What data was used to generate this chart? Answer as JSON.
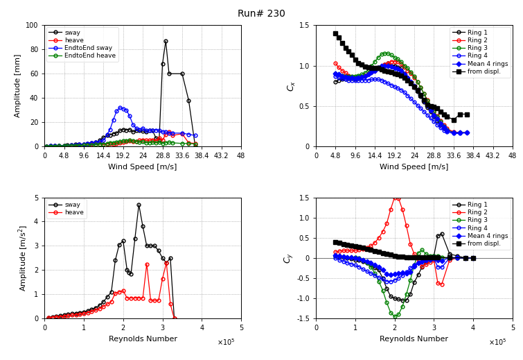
{
  "title": "Run# 230",
  "top_left": {
    "xlabel": "Wind Speed [m/s]",
    "ylabel": "Amplitude [mm]",
    "xlim": [
      0,
      48
    ],
    "ylim": [
      0,
      100
    ],
    "xticks": [
      0,
      4.8,
      9.6,
      14.4,
      19.2,
      24,
      28.8,
      33.6,
      38.4,
      43.2,
      48
    ],
    "yticks": [
      0,
      20,
      40,
      60,
      80,
      100
    ],
    "sway_x": [
      0.5,
      1.5,
      2.5,
      3.5,
      4.8,
      5.5,
      6.5,
      7.5,
      8.5,
      9.6,
      10.5,
      11.5,
      12.5,
      13.5,
      14.4,
      15.3,
      16.0,
      16.8,
      17.6,
      18.4,
      19.2,
      20.0,
      20.8,
      21.6,
      22.4,
      23.2,
      24.0,
      24.8,
      25.6,
      26.4,
      27.2,
      28.0,
      28.8,
      29.6,
      30.4,
      33.6,
      35.2,
      36.8
    ],
    "sway_y": [
      0.3,
      0.4,
      0.5,
      0.6,
      0.8,
      1.0,
      1.2,
      1.5,
      1.8,
      2.0,
      2.5,
      3.0,
      3.5,
      5.0,
      7.5,
      9.0,
      9.5,
      10.5,
      11.0,
      13.0,
      14.0,
      13.5,
      14.0,
      12.0,
      13.0,
      13.0,
      12.5,
      12.0,
      13.0,
      13.0,
      7.0,
      5.5,
      68.0,
      87.0,
      60.0,
      60.0,
      38.0,
      0.0
    ],
    "heave_x": [
      0.5,
      1.5,
      2.5,
      3.5,
      4.8,
      5.5,
      6.5,
      7.5,
      8.5,
      9.6,
      10.5,
      11.5,
      12.5,
      13.5,
      14.4,
      15.3,
      16.0,
      16.8,
      17.6,
      18.4,
      19.2,
      20.0,
      20.8,
      21.6,
      22.4,
      23.2,
      24.0,
      24.8,
      25.6,
      26.4,
      27.2,
      28.0,
      28.8,
      29.6,
      30.4,
      31.2,
      33.6,
      35.2,
      36.8
    ],
    "heave_y": [
      0.1,
      0.15,
      0.2,
      0.3,
      0.4,
      0.5,
      0.6,
      0.7,
      0.8,
      1.0,
      1.2,
      1.5,
      1.8,
      2.0,
      1.5,
      2.0,
      2.5,
      2.0,
      2.5,
      3.0,
      3.5,
      3.8,
      4.5,
      4.0,
      4.0,
      5.0,
      5.5,
      5.0,
      5.0,
      5.5,
      4.5,
      7.0,
      5.0,
      10.0,
      12.0,
      9.0,
      10.5,
      3.0,
      2.5
    ],
    "e2e_sway_x": [
      0.5,
      1.5,
      2.5,
      3.5,
      4.8,
      5.5,
      6.5,
      7.5,
      8.5,
      9.6,
      10.5,
      11.5,
      12.5,
      13.5,
      14.4,
      15.3,
      16.0,
      16.8,
      17.6,
      18.4,
      19.2,
      20.0,
      20.8,
      21.6,
      22.4,
      23.2,
      24.0,
      24.8,
      25.6,
      26.4,
      27.2,
      28.0,
      28.8,
      29.6,
      30.4,
      31.2,
      33.6,
      35.2,
      36.8
    ],
    "e2e_sway_y": [
      0.3,
      0.4,
      0.5,
      0.6,
      0.7,
      0.8,
      1.0,
      1.2,
      1.5,
      2.0,
      2.5,
      3.0,
      3.5,
      4.0,
      5.0,
      10.0,
      14.0,
      22.0,
      29.0,
      32.0,
      31.0,
      30.0,
      25.0,
      18.0,
      15.0,
      14.0,
      15.0,
      13.0,
      13.0,
      13.0,
      13.5,
      13.0,
      12.0,
      12.0,
      11.0,
      11.0,
      11.0,
      10.0,
      9.0
    ],
    "e2e_heave_x": [
      0.5,
      1.5,
      2.5,
      3.5,
      4.8,
      5.5,
      6.5,
      7.5,
      8.5,
      9.6,
      10.5,
      11.5,
      12.5,
      13.5,
      14.4,
      15.3,
      16.0,
      16.8,
      17.6,
      18.4,
      19.2,
      20.0,
      20.8,
      21.6,
      22.4,
      23.2,
      24.0,
      24.8,
      25.6,
      26.4,
      27.2,
      28.0,
      28.8,
      29.6,
      30.4,
      31.2,
      33.6,
      35.2,
      36.8
    ],
    "e2e_heave_y": [
      0.2,
      0.25,
      0.3,
      0.4,
      0.5,
      0.6,
      0.7,
      0.8,
      0.9,
      1.0,
      1.1,
      1.2,
      1.5,
      1.8,
      2.0,
      2.5,
      3.0,
      3.0,
      3.5,
      4.0,
      4.5,
      4.5,
      5.0,
      4.5,
      4.0,
      3.5,
      4.0,
      3.0,
      3.0,
      3.5,
      3.0,
      3.5,
      2.5,
      3.0,
      3.5,
      3.0,
      2.5,
      2.5,
      2.0
    ]
  },
  "top_right": {
    "xlabel": "Wind Speed [m/s]",
    "ylabel": "C_x",
    "xlim": [
      0,
      48
    ],
    "ylim": [
      0,
      1.5
    ],
    "xticks": [
      0,
      4.8,
      9.6,
      14.4,
      19.2,
      24,
      28.8,
      33.6,
      38.4,
      43.2,
      48
    ],
    "yticks": [
      0,
      0.5,
      1.0,
      1.5
    ],
    "ring1_x": [
      4.8,
      5.5,
      6.4,
      7.2,
      8.0,
      8.8,
      9.6,
      10.4,
      11.2,
      12.0,
      12.8,
      13.6,
      14.4,
      15.2,
      16.0,
      16.8,
      17.6,
      18.4,
      19.2,
      20.0,
      20.8,
      21.6,
      22.4,
      23.2,
      24.0,
      24.8,
      25.6,
      26.4,
      27.2,
      28.0,
      28.8,
      29.6,
      30.4,
      31.2,
      32.0,
      33.6,
      35.2,
      36.8
    ],
    "ring1_y": [
      0.8,
      0.82,
      0.83,
      0.83,
      0.84,
      0.84,
      0.83,
      0.84,
      0.86,
      0.88,
      0.9,
      0.92,
      0.94,
      0.98,
      1.0,
      1.01,
      1.03,
      1.0,
      1.0,
      0.98,
      0.97,
      0.9,
      0.85,
      0.8,
      0.73,
      0.68,
      0.62,
      0.55,
      0.48,
      0.43,
      0.37,
      0.32,
      0.27,
      0.22,
      0.2,
      0.17,
      0.17,
      0.17
    ],
    "ring2_x": [
      4.8,
      5.5,
      6.4,
      7.2,
      8.0,
      8.8,
      9.6,
      10.4,
      11.2,
      12.0,
      12.8,
      13.6,
      14.4,
      15.2,
      16.0,
      16.8,
      17.6,
      18.4,
      19.2,
      20.0,
      20.8,
      21.6,
      22.4,
      23.2,
      24.0,
      24.8,
      25.6,
      26.4,
      27.2,
      28.0,
      28.8,
      29.6,
      30.4,
      31.2,
      32.0,
      33.6,
      35.2,
      36.8
    ],
    "ring2_y": [
      1.03,
      0.98,
      0.94,
      0.91,
      0.88,
      0.86,
      0.85,
      0.85,
      0.86,
      0.88,
      0.9,
      0.92,
      0.94,
      0.97,
      0.99,
      1.01,
      1.03,
      1.05,
      1.05,
      1.05,
      1.02,
      0.98,
      0.94,
      0.9,
      0.85,
      0.8,
      0.73,
      0.65,
      0.58,
      0.5,
      0.43,
      0.38,
      0.32,
      0.27,
      0.22,
      0.18,
      0.17,
      0.17
    ],
    "ring3_x": [
      4.8,
      5.5,
      6.4,
      7.2,
      8.0,
      8.8,
      9.6,
      10.4,
      11.2,
      12.0,
      12.8,
      13.6,
      14.4,
      15.2,
      16.0,
      16.8,
      17.6,
      18.4,
      19.2,
      20.0,
      20.8,
      21.6,
      22.4,
      23.2,
      24.0,
      24.8,
      25.6,
      26.4,
      27.2,
      28.0,
      28.8,
      29.6,
      30.4,
      31.2,
      32.0,
      33.6,
      35.2,
      36.8
    ],
    "ring3_y": [
      0.9,
      0.89,
      0.88,
      0.87,
      0.87,
      0.87,
      0.87,
      0.88,
      0.89,
      0.91,
      0.95,
      1.0,
      1.05,
      1.1,
      1.14,
      1.15,
      1.15,
      1.13,
      1.1,
      1.08,
      1.05,
      1.0,
      0.97,
      0.92,
      0.87,
      0.8,
      0.73,
      0.65,
      0.57,
      0.5,
      0.43,
      0.37,
      0.31,
      0.25,
      0.21,
      0.17,
      0.17,
      0.17
    ],
    "ring4_x": [
      4.8,
      5.5,
      6.4,
      7.2,
      8.0,
      8.8,
      9.6,
      10.4,
      11.2,
      12.0,
      12.8,
      13.6,
      14.4,
      15.2,
      16.0,
      16.8,
      17.6,
      18.4,
      19.2,
      20.0,
      20.8,
      21.6,
      22.4,
      23.2,
      24.0,
      24.8,
      25.6,
      26.4,
      27.2,
      28.0,
      28.8,
      29.6,
      30.4,
      31.2,
      32.0,
      33.6,
      35.2,
      36.8
    ],
    "ring4_y": [
      0.87,
      0.85,
      0.84,
      0.83,
      0.82,
      0.82,
      0.82,
      0.82,
      0.82,
      0.82,
      0.82,
      0.83,
      0.83,
      0.83,
      0.82,
      0.8,
      0.78,
      0.76,
      0.74,
      0.72,
      0.7,
      0.67,
      0.63,
      0.59,
      0.55,
      0.51,
      0.47,
      0.43,
      0.39,
      0.35,
      0.31,
      0.27,
      0.23,
      0.2,
      0.18,
      0.16,
      0.16,
      0.17
    ],
    "mean_x": [
      4.8,
      5.5,
      6.4,
      7.2,
      8.0,
      8.8,
      9.6,
      10.4,
      11.2,
      12.0,
      12.8,
      13.6,
      14.4,
      15.2,
      16.0,
      16.8,
      17.6,
      18.4,
      19.2,
      20.0,
      20.8,
      21.6,
      22.4,
      23.2,
      24.0,
      24.8,
      25.6,
      26.4,
      27.2,
      28.0,
      28.8,
      29.6,
      30.4,
      31.2,
      32.0,
      33.6,
      35.2,
      36.8
    ],
    "mean_y": [
      0.9,
      0.89,
      0.87,
      0.86,
      0.85,
      0.85,
      0.84,
      0.85,
      0.86,
      0.87,
      0.89,
      0.92,
      0.94,
      0.97,
      1.0,
      1.0,
      1.0,
      0.99,
      0.97,
      0.96,
      0.94,
      0.89,
      0.85,
      0.8,
      0.75,
      0.7,
      0.64,
      0.57,
      0.51,
      0.45,
      0.39,
      0.34,
      0.28,
      0.24,
      0.2,
      0.17,
      0.17,
      0.17
    ],
    "displ_x": [
      4.8,
      5.5,
      6.4,
      7.2,
      8.0,
      8.8,
      9.6,
      10.4,
      11.2,
      12.0,
      12.8,
      13.6,
      14.4,
      15.2,
      16.0,
      16.8,
      17.6,
      18.4,
      19.2,
      20.0,
      20.8,
      21.6,
      22.4,
      23.2,
      24.0,
      24.8,
      25.6,
      26.4,
      27.2,
      28.0,
      28.8,
      29.6,
      30.4,
      31.2,
      32.0,
      33.6,
      35.2,
      36.8
    ],
    "displ_y": [
      1.4,
      1.35,
      1.28,
      1.22,
      1.18,
      1.13,
      1.07,
      1.03,
      1.01,
      0.99,
      0.98,
      0.97,
      0.97,
      0.97,
      0.95,
      0.94,
      0.93,
      0.92,
      0.9,
      0.89,
      0.88,
      0.85,
      0.82,
      0.78,
      0.74,
      0.7,
      0.64,
      0.58,
      0.52,
      0.5,
      0.49,
      0.47,
      0.43,
      0.4,
      0.37,
      0.33,
      0.4,
      0.4
    ]
  },
  "bot_left": {
    "xlabel": "Reynolds Number",
    "ylabel": "Amplitude [m/s²]",
    "xlim": [
      0,
      500000
    ],
    "ylim": [
      0,
      5
    ],
    "yticks": [
      0,
      1,
      2,
      3,
      4,
      5
    ],
    "xticks": [
      0,
      100000,
      200000,
      300000,
      400000,
      500000
    ],
    "xticklabels": [
      "0",
      "1",
      "2",
      "3",
      "4",
      "5"
    ],
    "sway_x": [
      10000,
      20000,
      30000,
      40000,
      50000,
      60000,
      70000,
      80000,
      90000,
      100000,
      110000,
      120000,
      130000,
      140000,
      150000,
      160000,
      170000,
      180000,
      190000,
      200000,
      210000,
      215000,
      220000,
      230000,
      240000,
      250000,
      260000,
      270000,
      280000,
      290000,
      300000,
      310000,
      320000,
      330000
    ],
    "sway_y": [
      0.05,
      0.08,
      0.1,
      0.12,
      0.15,
      0.18,
      0.2,
      0.22,
      0.25,
      0.28,
      0.32,
      0.38,
      0.45,
      0.55,
      0.7,
      0.9,
      1.1,
      2.4,
      3.05,
      3.2,
      2.0,
      1.9,
      1.85,
      3.3,
      4.7,
      3.8,
      3.0,
      3.0,
      3.0,
      2.8,
      2.5,
      2.3,
      2.5,
      0.0
    ],
    "heave_x": [
      10000,
      20000,
      30000,
      40000,
      50000,
      60000,
      70000,
      80000,
      90000,
      100000,
      110000,
      120000,
      130000,
      140000,
      150000,
      160000,
      170000,
      180000,
      190000,
      200000,
      210000,
      220000,
      230000,
      240000,
      250000,
      260000,
      270000,
      280000,
      290000,
      300000,
      310000,
      320000,
      330000
    ],
    "heave_y": [
      0.03,
      0.05,
      0.07,
      0.08,
      0.1,
      0.12,
      0.14,
      0.16,
      0.18,
      0.2,
      0.25,
      0.3,
      0.35,
      0.4,
      0.5,
      0.6,
      0.7,
      1.05,
      1.1,
      1.15,
      0.85,
      0.85,
      0.85,
      0.85,
      0.85,
      2.25,
      0.75,
      0.75,
      0.75,
      1.65,
      2.3,
      0.6,
      0.0
    ]
  },
  "bot_right": {
    "xlabel": "Reynolds Number",
    "ylabel": "C_y",
    "xlim": [
      0,
      500000
    ],
    "ylim": [
      -1.5,
      1.5
    ],
    "yticks": [
      -1.5,
      -1.0,
      -0.5,
      0,
      0.5,
      1.0,
      1.5
    ],
    "xticks": [
      0,
      100000,
      200000,
      300000,
      400000,
      500000
    ],
    "xticklabels": [
      "0",
      "1",
      "2",
      "3",
      "4",
      "5"
    ],
    "ring1_x": [
      50000,
      60000,
      70000,
      80000,
      90000,
      100000,
      110000,
      120000,
      130000,
      140000,
      150000,
      160000,
      170000,
      180000,
      190000,
      200000,
      210000,
      220000,
      230000,
      240000,
      250000,
      260000,
      270000,
      280000,
      290000,
      300000,
      310000,
      320000,
      340000,
      360000,
      380000,
      400000
    ],
    "ring1_y": [
      0.05,
      0.03,
      0.02,
      0.0,
      -0.02,
      -0.05,
      -0.05,
      -0.08,
      -0.12,
      -0.18,
      -0.25,
      -0.3,
      -0.5,
      -0.75,
      -0.95,
      -1.0,
      -1.02,
      -1.05,
      -1.05,
      -0.9,
      -0.6,
      -0.42,
      -0.22,
      -0.1,
      -0.05,
      0.05,
      0.55,
      0.6,
      0.1,
      0.05,
      0.0,
      0.0
    ],
    "ring2_x": [
      50000,
      60000,
      70000,
      80000,
      90000,
      100000,
      110000,
      120000,
      130000,
      140000,
      150000,
      160000,
      170000,
      180000,
      190000,
      200000,
      210000,
      220000,
      230000,
      240000,
      250000,
      260000,
      270000,
      280000,
      290000,
      300000,
      310000,
      320000,
      340000,
      360000,
      380000,
      400000
    ],
    "ring2_y": [
      0.15,
      0.17,
      0.18,
      0.18,
      0.18,
      0.18,
      0.2,
      0.22,
      0.25,
      0.3,
      0.38,
      0.5,
      0.65,
      0.85,
      1.2,
      1.5,
      1.48,
      1.2,
      0.8,
      0.35,
      0.1,
      -0.1,
      -0.2,
      -0.15,
      -0.1,
      -0.05,
      -0.62,
      -0.65,
      -0.05,
      0.0,
      0.0,
      0.0
    ],
    "ring3_x": [
      50000,
      60000,
      70000,
      80000,
      90000,
      100000,
      110000,
      120000,
      130000,
      140000,
      150000,
      160000,
      170000,
      180000,
      190000,
      200000,
      210000,
      220000,
      230000,
      240000,
      250000,
      260000,
      270000,
      280000,
      290000,
      300000,
      310000,
      320000,
      340000,
      360000,
      380000,
      400000
    ],
    "ring3_y": [
      0.05,
      0.05,
      0.03,
      0.02,
      0.02,
      0.02,
      0.0,
      -0.05,
      -0.12,
      -0.22,
      -0.38,
      -0.58,
      -0.8,
      -1.1,
      -1.35,
      -1.45,
      -1.4,
      -1.2,
      -0.9,
      -0.55,
      -0.18,
      0.12,
      0.2,
      0.1,
      0.05,
      0.05,
      0.05,
      0.02,
      0.0,
      0.0,
      0.0,
      0.0
    ],
    "ring4_x": [
      50000,
      60000,
      70000,
      80000,
      90000,
      100000,
      110000,
      120000,
      130000,
      140000,
      150000,
      160000,
      170000,
      180000,
      190000,
      200000,
      210000,
      220000,
      230000,
      240000,
      250000,
      260000,
      270000,
      280000,
      290000,
      300000,
      310000,
      320000,
      340000,
      360000,
      380000,
      400000
    ],
    "ring4_y": [
      0.0,
      -0.05,
      -0.08,
      -0.12,
      -0.15,
      -0.18,
      -0.22,
      -0.28,
      -0.33,
      -0.38,
      -0.43,
      -0.48,
      -0.52,
      -0.58,
      -0.58,
      -0.55,
      -0.5,
      -0.43,
      -0.35,
      -0.25,
      -0.17,
      -0.12,
      -0.08,
      -0.05,
      -0.03,
      -0.02,
      -0.22,
      -0.23,
      0.0,
      0.0,
      0.0,
      0.0
    ],
    "mean_x": [
      50000,
      60000,
      70000,
      80000,
      90000,
      100000,
      110000,
      120000,
      130000,
      140000,
      150000,
      160000,
      170000,
      180000,
      190000,
      200000,
      210000,
      220000,
      230000,
      240000,
      250000,
      260000,
      270000,
      280000,
      290000,
      300000,
      310000,
      320000,
      340000,
      360000,
      380000,
      400000
    ],
    "mean_y": [
      0.06,
      0.05,
      0.04,
      0.02,
      0.01,
      0.0,
      -0.02,
      -0.05,
      -0.08,
      -0.12,
      -0.17,
      -0.22,
      -0.3,
      -0.4,
      -0.42,
      -0.4,
      -0.38,
      -0.37,
      -0.38,
      -0.34,
      -0.21,
      -0.13,
      -0.08,
      -0.05,
      -0.03,
      0.01,
      -0.06,
      -0.07,
      0.01,
      0.01,
      0.0,
      0.0
    ],
    "displ_x": [
      50000,
      60000,
      70000,
      80000,
      90000,
      100000,
      110000,
      120000,
      130000,
      140000,
      150000,
      160000,
      170000,
      180000,
      190000,
      200000,
      210000,
      220000,
      230000,
      240000,
      250000,
      260000,
      270000,
      280000,
      290000,
      300000,
      310000,
      340000,
      380000,
      400000
    ],
    "displ_y": [
      0.4,
      0.37,
      0.35,
      0.33,
      0.31,
      0.29,
      0.27,
      0.25,
      0.22,
      0.2,
      0.17,
      0.15,
      0.12,
      0.1,
      0.08,
      0.05,
      0.04,
      0.03,
      0.02,
      0.02,
      0.02,
      0.02,
      0.01,
      0.01,
      0.01,
      0.01,
      0.01,
      0.01,
      0.0,
      0.0
    ]
  }
}
